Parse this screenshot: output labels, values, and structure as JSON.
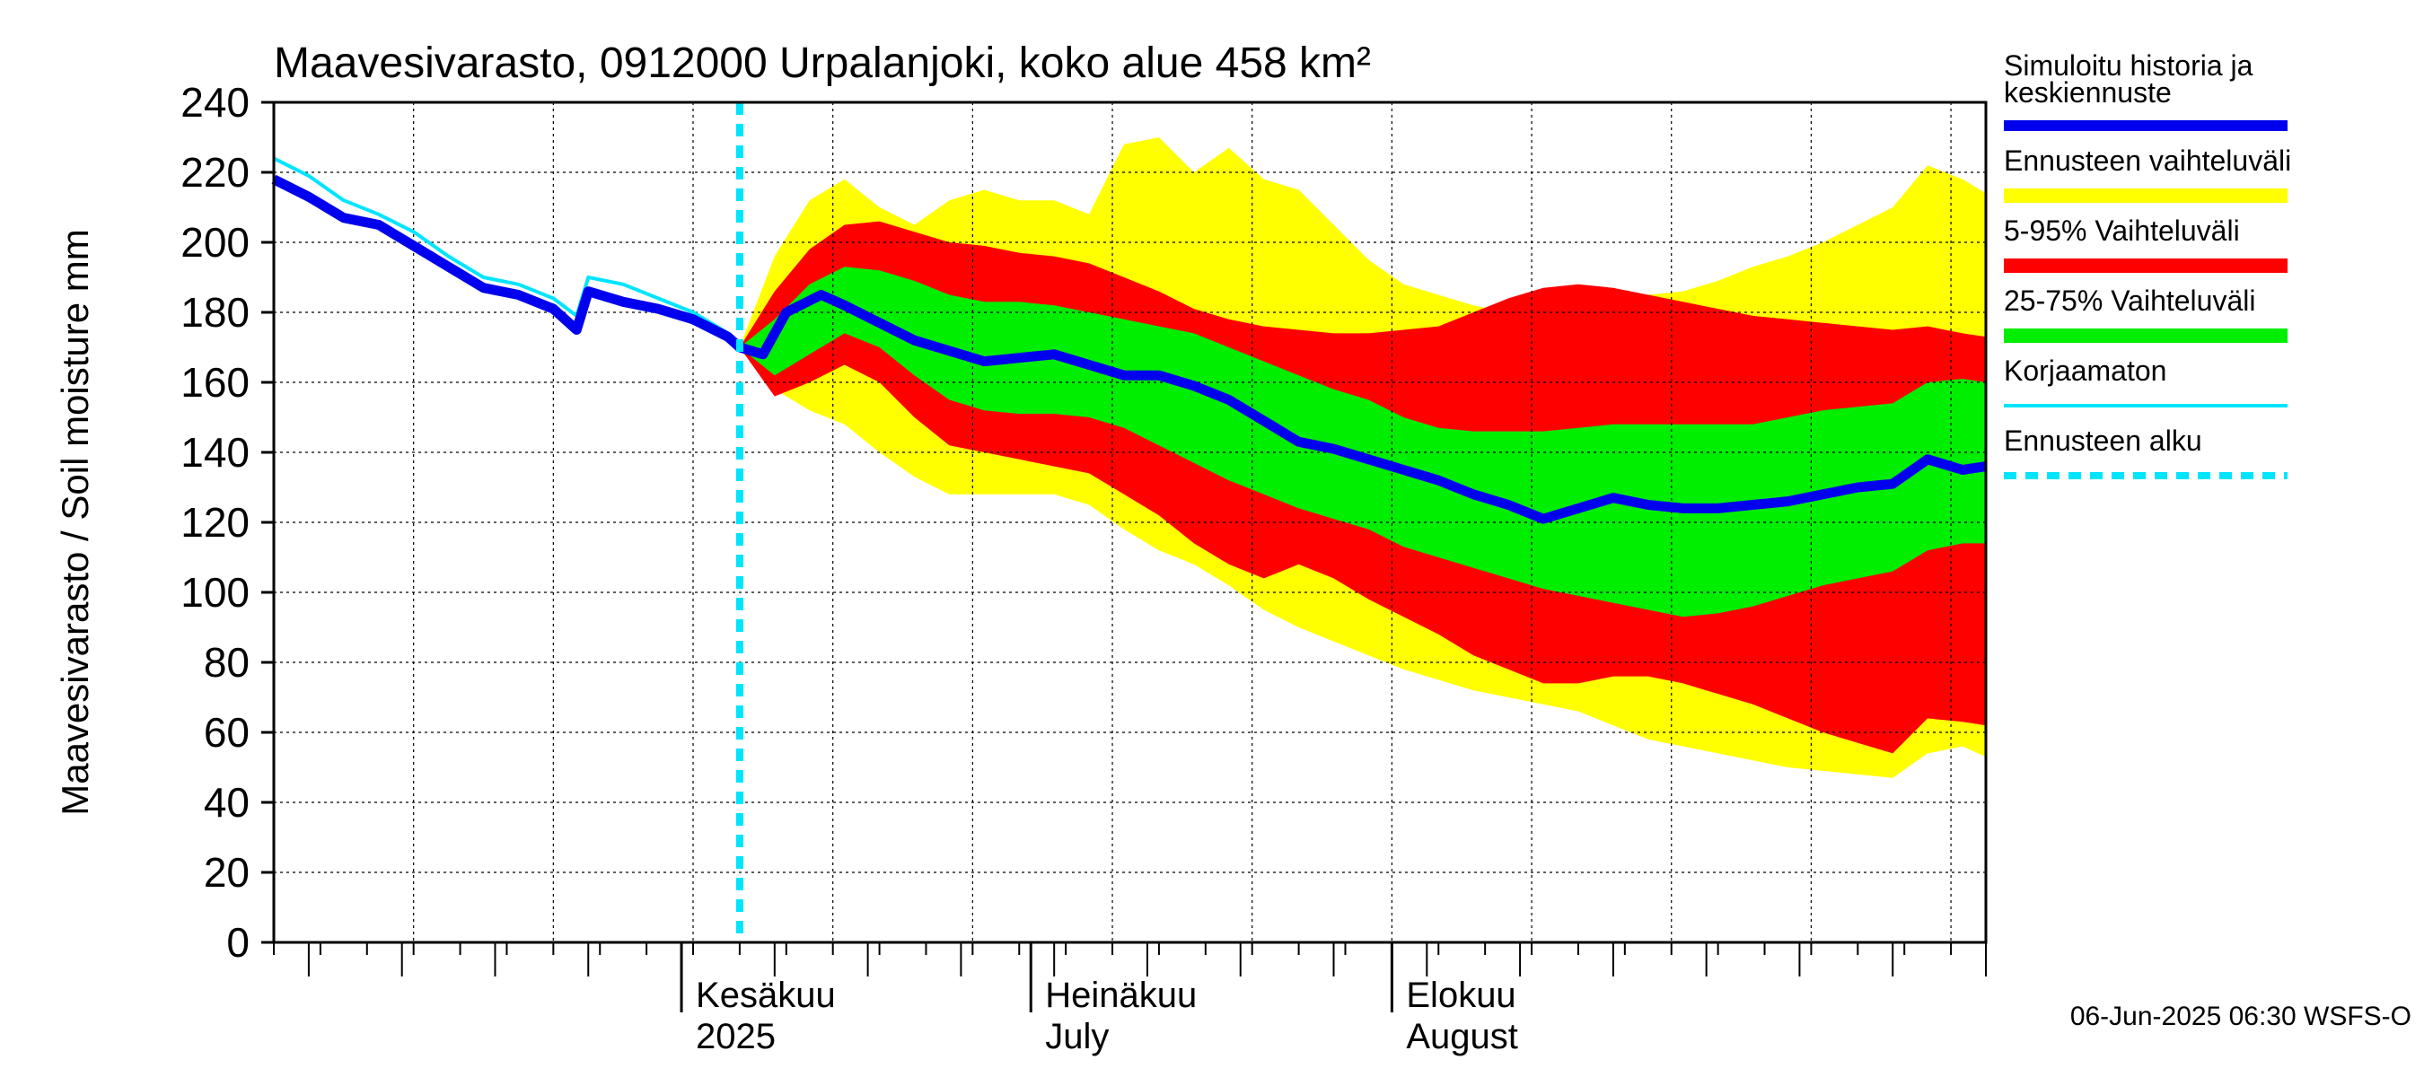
{
  "chart_data": {
    "type": "area",
    "title": "Maavesivarasto, 0912000 Urpalanjoki, koko alue 458 km²",
    "ylabel": "Maavesivarasto / Soil moisture   mm",
    "ylim": [
      0,
      240
    ],
    "y_ticks": [
      "0",
      "20",
      "40",
      "60",
      "80",
      "100",
      "120",
      "140",
      "160",
      "180",
      "200",
      "220",
      "240"
    ],
    "x_start": "2025-04-27",
    "x_end": "2025-09-21",
    "forecast_start": "2025-06-06",
    "month_labels": [
      {
        "date": "2025-06-01",
        "fi": "Kesäkuu",
        "en": "2025"
      },
      {
        "date": "2025-07-01",
        "fi": "Heinäkuu",
        "en": "July"
      },
      {
        "date": "2025-08-01",
        "fi": "Elokuu",
        "en": "August"
      }
    ],
    "grid": true,
    "legend_position": "right",
    "colors": {
      "sim": "#0000ee",
      "uncorr": "#00e5ff",
      "full": "#ffff00",
      "p5_95": "#ff0000",
      "p25_75": "#00ee00",
      "start": "#00e5ff"
    },
    "legend": [
      {
        "key": "sim",
        "line1": "Simuloitu historia ja",
        "line2": "keskiennuste"
      },
      {
        "key": "full",
        "line1": "Ennusteen vaihteluväli",
        "line2": ""
      },
      {
        "key": "p5_95",
        "line1": "5-95% Vaihteluväli",
        "line2": ""
      },
      {
        "key": "p25_75",
        "line1": "25-75% Vaihteluväli",
        "line2": ""
      },
      {
        "key": "uncorr",
        "line1": "Korjaamaton",
        "line2": ""
      },
      {
        "key": "start",
        "line1": "Ennusteen alku",
        "line2": ""
      }
    ],
    "timestamp": "06-Jun-2025 06:30 WSFS-O",
    "series": [
      {
        "key": "sim",
        "x": [
          "2025-04-27",
          "2025-04-30",
          "2025-05-03",
          "2025-05-06",
          "2025-05-09",
          "2025-05-12",
          "2025-05-15",
          "2025-05-18",
          "2025-05-21",
          "2025-05-23",
          "2025-05-24",
          "2025-05-27",
          "2025-05-30",
          "2025-06-02",
          "2025-06-05",
          "2025-06-06",
          "2025-06-08",
          "2025-06-10",
          "2025-06-13",
          "2025-06-15",
          "2025-06-18",
          "2025-06-21",
          "2025-06-24",
          "2025-06-27",
          "2025-06-30",
          "2025-07-03",
          "2025-07-06",
          "2025-07-09",
          "2025-07-12",
          "2025-07-15",
          "2025-07-18",
          "2025-07-21",
          "2025-07-24",
          "2025-07-27",
          "2025-07-30",
          "2025-08-02",
          "2025-08-05",
          "2025-08-08",
          "2025-08-11",
          "2025-08-14",
          "2025-08-17",
          "2025-08-20",
          "2025-08-23",
          "2025-08-26",
          "2025-08-29",
          "2025-09-01",
          "2025-09-04",
          "2025-09-07",
          "2025-09-10",
          "2025-09-13",
          "2025-09-16",
          "2025-09-19",
          "2025-09-21"
        ],
        "y": [
          218,
          213,
          207,
          205,
          199,
          193,
          187,
          185,
          181,
          175,
          186,
          183,
          181,
          178,
          173,
          170,
          168,
          180,
          185,
          182,
          177,
          172,
          169,
          166,
          167,
          168,
          165,
          162,
          162,
          159,
          155,
          149,
          143,
          141,
          138,
          135,
          132,
          128,
          125,
          121,
          124,
          127,
          125,
          124,
          124,
          125,
          126,
          128,
          130,
          131,
          138,
          135,
          136
        ]
      },
      {
        "key": "uncorr",
        "x": [
          "2025-04-27",
          "2025-04-30",
          "2025-05-03",
          "2025-05-06",
          "2025-05-09",
          "2025-05-12",
          "2025-05-15",
          "2025-05-18",
          "2025-05-21",
          "2025-05-23",
          "2025-05-24",
          "2025-05-27",
          "2025-05-30",
          "2025-06-02",
          "2025-06-05",
          "2025-06-06"
        ],
        "y": [
          224,
          219,
          212,
          208,
          203,
          196,
          190,
          188,
          184,
          179,
          190,
          188,
          184,
          180,
          174,
          171
        ]
      },
      {
        "key": "full",
        "x": [
          "2025-06-06",
          "2025-06-09",
          "2025-06-12",
          "2025-06-15",
          "2025-06-18",
          "2025-06-21",
          "2025-06-24",
          "2025-06-27",
          "2025-06-30",
          "2025-07-03",
          "2025-07-06",
          "2025-07-09",
          "2025-07-12",
          "2025-07-15",
          "2025-07-18",
          "2025-07-21",
          "2025-07-24",
          "2025-07-27",
          "2025-07-30",
          "2025-08-02",
          "2025-08-05",
          "2025-08-08",
          "2025-08-11",
          "2025-08-14",
          "2025-08-17",
          "2025-08-20",
          "2025-08-23",
          "2025-08-26",
          "2025-08-29",
          "2025-09-01",
          "2025-09-04",
          "2025-09-07",
          "2025-09-10",
          "2025-09-13",
          "2025-09-16",
          "2025-09-19",
          "2025-09-21"
        ],
        "upper": [
          170,
          196,
          212,
          218,
          210,
          205,
          212,
          215,
          212,
          212,
          208,
          228,
          230,
          220,
          227,
          218,
          215,
          205,
          195,
          188,
          185,
          182,
          180,
          181,
          183,
          184,
          185,
          186,
          189,
          193,
          196,
          200,
          205,
          210,
          222,
          218,
          214
        ],
        "lower": [
          170,
          158,
          152,
          148,
          140,
          133,
          128,
          128,
          128,
          128,
          125,
          118,
          112,
          108,
          102,
          95,
          90,
          86,
          82,
          78,
          75,
          72,
          70,
          68,
          66,
          62,
          58,
          56,
          54,
          52,
          50,
          49,
          48,
          47,
          54,
          56,
          53
        ]
      },
      {
        "key": "p5_95",
        "x": [
          "2025-06-06",
          "2025-06-09",
          "2025-06-12",
          "2025-06-15",
          "2025-06-18",
          "2025-06-21",
          "2025-06-24",
          "2025-06-27",
          "2025-06-30",
          "2025-07-03",
          "2025-07-06",
          "2025-07-09",
          "2025-07-12",
          "2025-07-15",
          "2025-07-18",
          "2025-07-21",
          "2025-07-24",
          "2025-07-27",
          "2025-07-30",
          "2025-08-02",
          "2025-08-05",
          "2025-08-08",
          "2025-08-11",
          "2025-08-14",
          "2025-08-17",
          "2025-08-20",
          "2025-08-23",
          "2025-08-26",
          "2025-08-29",
          "2025-09-01",
          "2025-09-04",
          "2025-09-07",
          "2025-09-10",
          "2025-09-13",
          "2025-09-16",
          "2025-09-19",
          "2025-09-21"
        ],
        "upper": [
          170,
          186,
          198,
          205,
          206,
          203,
          200,
          199,
          197,
          196,
          194,
          190,
          186,
          181,
          178,
          176,
          175,
          174,
          174,
          175,
          176,
          180,
          184,
          187,
          188,
          187,
          185,
          183,
          181,
          179,
          178,
          177,
          176,
          175,
          176,
          174,
          173
        ],
        "lower": [
          170,
          156,
          160,
          165,
          160,
          150,
          142,
          140,
          138,
          136,
          134,
          128,
          122,
          114,
          108,
          104,
          108,
          104,
          98,
          93,
          88,
          82,
          78,
          74,
          74,
          76,
          76,
          74,
          71,
          68,
          64,
          60,
          57,
          54,
          64,
          63,
          62
        ]
      },
      {
        "key": "p25_75",
        "x": [
          "2025-06-06",
          "2025-06-09",
          "2025-06-12",
          "2025-06-15",
          "2025-06-18",
          "2025-06-21",
          "2025-06-24",
          "2025-06-27",
          "2025-06-30",
          "2025-07-03",
          "2025-07-06",
          "2025-07-09",
          "2025-07-12",
          "2025-07-15",
          "2025-07-18",
          "2025-07-21",
          "2025-07-24",
          "2025-07-27",
          "2025-07-30",
          "2025-08-02",
          "2025-08-05",
          "2025-08-08",
          "2025-08-11",
          "2025-08-14",
          "2025-08-17",
          "2025-08-20",
          "2025-08-23",
          "2025-08-26",
          "2025-08-29",
          "2025-09-01",
          "2025-09-04",
          "2025-09-07",
          "2025-09-10",
          "2025-09-13",
          "2025-09-16",
          "2025-09-19",
          "2025-09-21"
        ],
        "upper": [
          170,
          178,
          188,
          193,
          192,
          189,
          185,
          183,
          183,
          182,
          180,
          178,
          176,
          174,
          170,
          166,
          162,
          158,
          155,
          150,
          147,
          146,
          146,
          146,
          147,
          148,
          148,
          148,
          148,
          148,
          150,
          152,
          153,
          154,
          160,
          161,
          160
        ]
      },
      {
        "key": "p25_75_lower",
        "x": [
          "2025-06-06",
          "2025-06-09",
          "2025-06-12",
          "2025-06-15",
          "2025-06-18",
          "2025-06-21",
          "2025-06-24",
          "2025-06-27",
          "2025-06-30",
          "2025-07-03",
          "2025-07-06",
          "2025-07-09",
          "2025-07-12",
          "2025-07-15",
          "2025-07-18",
          "2025-07-21",
          "2025-07-24",
          "2025-07-27",
          "2025-07-30",
          "2025-08-02",
          "2025-08-05",
          "2025-08-08",
          "2025-08-11",
          "2025-08-14",
          "2025-08-17",
          "2025-08-20",
          "2025-08-23",
          "2025-08-26",
          "2025-08-29",
          "2025-09-01",
          "2025-09-04",
          "2025-09-07",
          "2025-09-10",
          "2025-09-13",
          "2025-09-16",
          "2025-09-19",
          "2025-09-21"
        ],
        "y": [
          170,
          162,
          168,
          174,
          170,
          162,
          155,
          152,
          151,
          151,
          150,
          147,
          142,
          137,
          132,
          128,
          124,
          121,
          118,
          113,
          110,
          107,
          104,
          101,
          99,
          97,
          95,
          93,
          94,
          96,
          99,
          102,
          104,
          106,
          112,
          114,
          114
        ]
      }
    ]
  }
}
